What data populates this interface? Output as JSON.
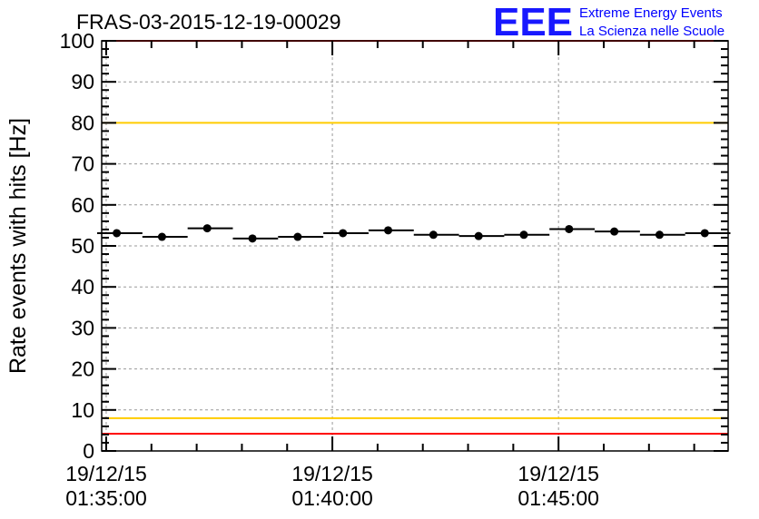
{
  "chart_data": {
    "type": "scatter",
    "title": "FRAS-03-2015-12-19-00029",
    "xlabel": "",
    "ylabel": "Rate events with hits [Hz]",
    "ylim": [
      0,
      100
    ],
    "xlim": [
      "01:34:54",
      "01:48:45"
    ],
    "date": "19/12/15",
    "x_tick_labels": [
      {
        "date": "19/12/15",
        "time": "01:35:00"
      },
      {
        "date": "19/12/15",
        "time": "01:40:00"
      },
      {
        "date": "19/12/15",
        "time": "01:45:00"
      }
    ],
    "y_ticks": [
      0,
      10,
      20,
      30,
      40,
      50,
      60,
      70,
      80,
      90,
      100
    ],
    "grid": true,
    "bin_width_s": 60,
    "x": [
      "01:35:14",
      "01:36:14",
      "01:37:14",
      "01:38:14",
      "01:39:14",
      "01:40:14",
      "01:41:14",
      "01:42:14",
      "01:43:14",
      "01:44:14",
      "01:45:14",
      "01:46:14",
      "01:47:14",
      "01:48:14"
    ],
    "values": [
      53.1,
      52.2,
      54.3,
      51.8,
      52.2,
      53.1,
      53.8,
      52.7,
      52.4,
      52.7,
      54.1,
      53.5,
      52.7,
      53.1
    ],
    "reference_lines": [
      {
        "value": 100,
        "color": "#ff0000"
      },
      {
        "value": 80,
        "color": "#ffcc00"
      },
      {
        "value": 8,
        "color": "#ffcc00"
      },
      {
        "value": 4.2,
        "color": "#ff0000"
      }
    ]
  },
  "logo": {
    "mark": "EEE",
    "line1": "Extreme Energy Events",
    "line2": "La Scienza nelle Scuole",
    "color": "#0000ff"
  }
}
